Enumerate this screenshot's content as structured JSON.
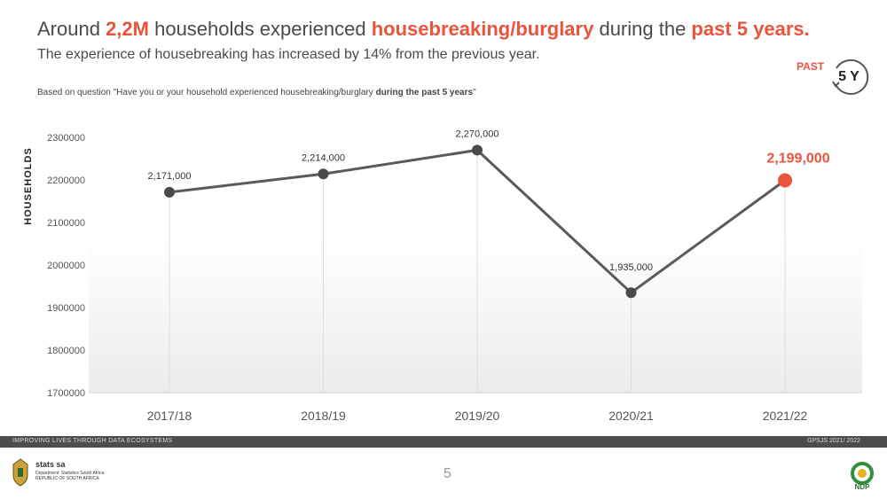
{
  "header": {
    "title_parts": [
      "Around ",
      "2,2M",
      " households experienced ",
      "housebreaking/burglary",
      " during the ",
      "past 5 years."
    ],
    "subtitle": "The experience of housebreaking has increased by 14% from the previous year.",
    "question_prefix": "Based on question \"Have you or your household experienced  housebreaking/burglary ",
    "question_bold": "during the past 5 years",
    "question_suffix": "\""
  },
  "badge": {
    "past": "PAST",
    "period": "5 Y"
  },
  "colors": {
    "accent": "#e8543c",
    "line": "#5a5a5a",
    "marker": "#4a4a4a"
  },
  "chart_data": {
    "type": "line",
    "ylabel": "HOUSEHOLDS",
    "ylim": [
      1700000,
      2300000
    ],
    "yticks": [
      "2300000",
      "2200000",
      "2100000",
      "2000000",
      "1900000",
      "1800000",
      "1700000"
    ],
    "categories": [
      "2017/18",
      "2018/19",
      "2019/20",
      "2020/21",
      "2021/22"
    ],
    "values": [
      2171000,
      2214000,
      2270000,
      1935000,
      2199000
    ],
    "data_labels": [
      "2,171,000",
      "2,214,000",
      "2,270,000",
      "1,935,000",
      "2,199,000"
    ],
    "highlight_index": 4,
    "grid": "vertical"
  },
  "footer": {
    "left": "IMPROVING LIVES THROUGH DATA ECOSYSTEMS",
    "right": "GPSJS 2021/ 2022",
    "page": "5",
    "logo_brand": "stats sa",
    "logo_dept": "Department: Statistics South Africa REPUBLIC OF SOUTH AFRICA",
    "logo_ndp": "NDP"
  }
}
